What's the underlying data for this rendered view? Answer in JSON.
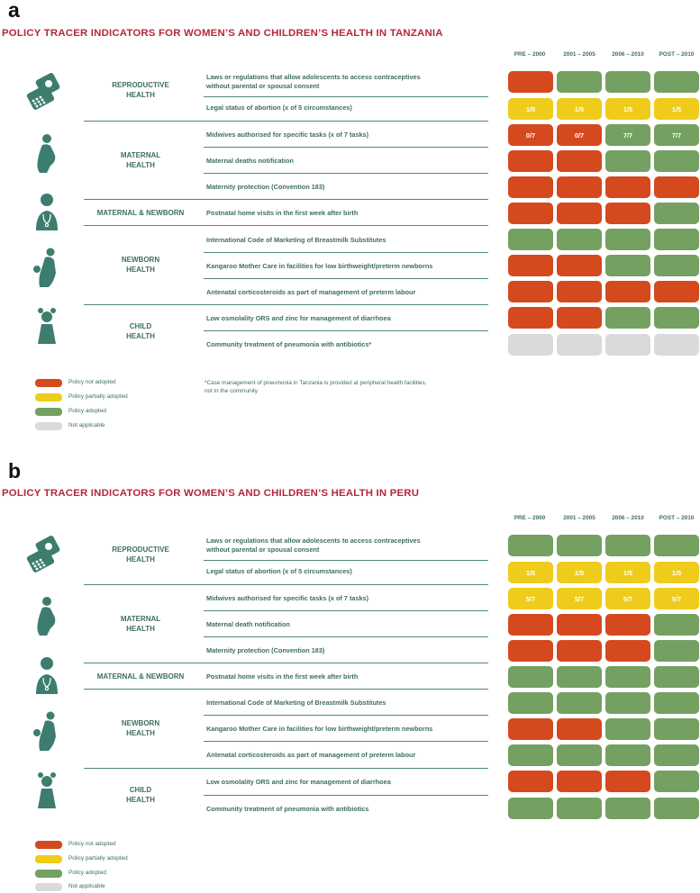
{
  "colors": {
    "not_adopted": "#d5491f",
    "partially": "#efcc1b",
    "adopted": "#74a061",
    "na": "#dadada",
    "heading": "#b3283a",
    "text": "#3d6f5a"
  },
  "legend": [
    "Policy not adopted",
    "Policy partially adopted",
    "Policy adopted",
    "Not applicable"
  ],
  "panels": [
    {
      "letter": "a",
      "title": "POLICY TRACER INDICATORS FOR WOMEN’S AND CHILDREN’S HEALTH IN TANZANIA",
      "columns": [
        "PRE – 2000",
        "2001 – 2005",
        "2006 – 2010",
        "POST – 2010"
      ],
      "groups": [
        {
          "name": "REPRODUCTIVE\nHEALTH",
          "icon": "contraceptive-pills-icon"
        },
        {
          "name": "MATERNAL\nHEALTH",
          "icon": "pregnant-woman-icon"
        },
        {
          "name": "MATERNAL & NEWBORN",
          "icon": "health-worker-icon"
        },
        {
          "name": "NEWBORN\nHEALTH",
          "icon": "mother-and-baby-icon"
        },
        {
          "name": "CHILD\nHEALTH",
          "icon": "child-icon"
        }
      ],
      "indicators": [
        "Laws or regulations that allow adolescents to access contraceptives\nwithout parental or spousal consent",
        "Legal status of abortion (x of 5 circumstances)",
        "Midwives authorised for specific tasks (x of 7 tasks)",
        "Maternal deaths notification",
        "Maternity protection (Convention 183)",
        "Postnatal home visits in the first week after birth",
        "International Code of Marketing of Breastmilk Substitutes",
        "Kangaroo Mother Care in facilities for low birthweight/preterm newborns",
        "Antenatal corticosteroids as part of management of preterm labour",
        "Low osmolality ORS and zinc for management of diarrhoea",
        "Community treatment of pneumonia with antibiotics*"
      ],
      "footnote": "*Case management of pneumonia in Tanzania is provided at peripheral health facilities,\n not in the community"
    },
    {
      "letter": "b",
      "title": "POLICY TRACER INDICATORS FOR WOMEN’S AND CHILDREN’S HEALTH IN PERU",
      "columns": [
        "PRE – 2000",
        "2001 – 2005",
        "2006 – 2010",
        "POST – 2010"
      ],
      "groups": [
        {
          "name": "REPRODUCTIVE\nHEALTH",
          "icon": "contraceptive-pills-icon"
        },
        {
          "name": "MATERNAL\nHEALTH",
          "icon": "pregnant-woman-icon"
        },
        {
          "name": "MATERNAL & NEWBORN",
          "icon": "health-worker-icon"
        },
        {
          "name": "NEWBORN\nHEALTH",
          "icon": "mother-and-baby-icon"
        },
        {
          "name": "CHILD\nHEALTH",
          "icon": "child-icon"
        }
      ],
      "indicators": [
        "Laws or regulations that allow adolescents to access contraceptives\nwithout parental or spousal consent",
        "Legal status of abortion (x of 5 circumstances)",
        "Midwives authorised for specific tasks (x of 7 tasks)",
        "Maternal death notification",
        "Maternity protection (Convention 183)",
        "Postnatal home visits in the first week after birth",
        "International Code of Marketing of Breastmilk Substitutes",
        "Kangaroo Mother Care in facilities for low birthweight/preterm newborns",
        "Antenatal corticosteroids as part of management of preterm labour",
        "Low osmolality ORS and zinc for management of diarrhoea",
        "Community treatment of pneumonia with antibiotics"
      ],
      "footnote": ""
    }
  ],
  "chart_data": [
    {
      "type": "heatmap",
      "title": "POLICY TRACER INDICATORS FOR WOMEN’S AND CHILDREN’S HEALTH IN TANZANIA",
      "categories": [
        "PRE – 2000",
        "2001 – 2005",
        "2006 – 2010",
        "POST – 2010"
      ],
      "status_legend": {
        "not": "Policy not adopted",
        "partial": "Policy partially adopted",
        "adopted": "Policy adopted",
        "na": "Not applicable"
      },
      "rows": [
        {
          "status": [
            "not",
            "adopted",
            "adopted",
            "adopted"
          ],
          "labels": [
            "",
            "",
            "",
            ""
          ]
        },
        {
          "status": [
            "partial",
            "partial",
            "partial",
            "partial"
          ],
          "labels": [
            "1/5",
            "1/5",
            "1/5",
            "1/5"
          ]
        },
        {
          "status": [
            "not",
            "not",
            "adopted",
            "adopted"
          ],
          "labels": [
            "0/7",
            "0/7",
            "7/7",
            "7/7"
          ]
        },
        {
          "status": [
            "not",
            "not",
            "adopted",
            "adopted"
          ],
          "labels": [
            "",
            "",
            "",
            ""
          ]
        },
        {
          "status": [
            "not",
            "not",
            "not",
            "not"
          ],
          "labels": [
            "",
            "",
            "",
            ""
          ]
        },
        {
          "status": [
            "not",
            "not",
            "not",
            "adopted"
          ],
          "labels": [
            "",
            "",
            "",
            ""
          ]
        },
        {
          "status": [
            "adopted",
            "adopted",
            "adopted",
            "adopted"
          ],
          "labels": [
            "",
            "",
            "",
            ""
          ]
        },
        {
          "status": [
            "not",
            "not",
            "adopted",
            "adopted"
          ],
          "labels": [
            "",
            "",
            "",
            ""
          ]
        },
        {
          "status": [
            "not",
            "not",
            "not",
            "not"
          ],
          "labels": [
            "",
            "",
            "",
            ""
          ]
        },
        {
          "status": [
            "not",
            "not",
            "adopted",
            "adopted"
          ],
          "labels": [
            "",
            "",
            "",
            ""
          ]
        },
        {
          "status": [
            "na",
            "na",
            "na",
            "na"
          ],
          "labels": [
            "",
            "",
            "",
            ""
          ]
        }
      ]
    },
    {
      "type": "heatmap",
      "title": "POLICY TRACER INDICATORS FOR WOMEN’S AND CHILDREN’S HEALTH IN PERU",
      "categories": [
        "PRE – 2000",
        "2001 – 2005",
        "2006 – 2010",
        "POST – 2010"
      ],
      "status_legend": {
        "not": "Policy not adopted",
        "partial": "Policy partially adopted",
        "adopted": "Policy adopted",
        "na": "Not applicable"
      },
      "rows": [
        {
          "status": [
            "adopted",
            "adopted",
            "adopted",
            "adopted"
          ],
          "labels": [
            "",
            "",
            "",
            ""
          ]
        },
        {
          "status": [
            "partial",
            "partial",
            "partial",
            "partial"
          ],
          "labels": [
            "1/5",
            "1/5",
            "1/5",
            "1/5"
          ]
        },
        {
          "status": [
            "partial",
            "partial",
            "partial",
            "partial"
          ],
          "labels": [
            "5/7",
            "5/7",
            "5/7",
            "5/7"
          ]
        },
        {
          "status": [
            "not",
            "not",
            "not",
            "adopted"
          ],
          "labels": [
            "",
            "",
            "",
            ""
          ]
        },
        {
          "status": [
            "not",
            "not",
            "not",
            "adopted"
          ],
          "labels": [
            "",
            "",
            "",
            ""
          ]
        },
        {
          "status": [
            "adopted",
            "adopted",
            "adopted",
            "adopted"
          ],
          "labels": [
            "",
            "",
            "",
            ""
          ]
        },
        {
          "status": [
            "adopted",
            "adopted",
            "adopted",
            "adopted"
          ],
          "labels": [
            "",
            "",
            "",
            ""
          ]
        },
        {
          "status": [
            "not",
            "not",
            "adopted",
            "adopted"
          ],
          "labels": [
            "",
            "",
            "",
            ""
          ]
        },
        {
          "status": [
            "adopted",
            "adopted",
            "adopted",
            "adopted"
          ],
          "labels": [
            "",
            "",
            "",
            ""
          ]
        },
        {
          "status": [
            "not",
            "not",
            "not",
            "adopted"
          ],
          "labels": [
            "",
            "",
            "",
            ""
          ]
        },
        {
          "status": [
            "adopted",
            "adopted",
            "adopted",
            "adopted"
          ],
          "labels": [
            "",
            "",
            "",
            ""
          ]
        }
      ]
    }
  ]
}
